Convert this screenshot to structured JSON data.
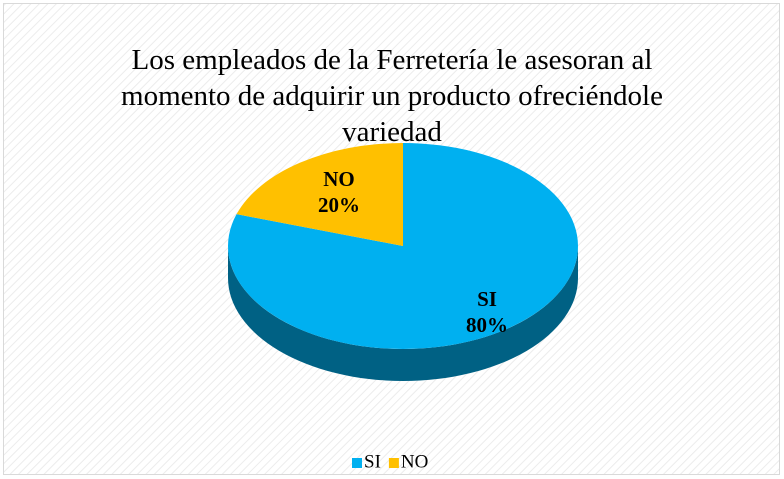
{
  "chart_data": {
    "type": "pie",
    "title": "Los empleados de la Ferretería le asesoran al momento de adquirir un producto ofreciéndole variedad",
    "categories": [
      "SI",
      "NO"
    ],
    "values": [
      80,
      20
    ],
    "value_labels": [
      "80%",
      "20%"
    ],
    "colors": [
      "#00b0f0",
      "#ffc000"
    ],
    "legend": "bottom"
  }
}
